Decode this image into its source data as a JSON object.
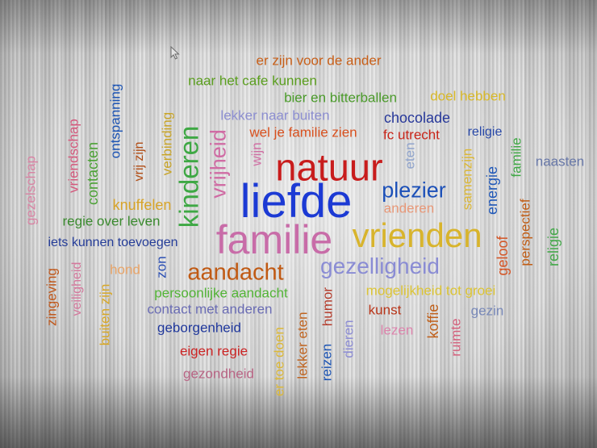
{
  "word_cloud": {
    "words": [
      {
        "text": "er zijn voor de ander",
        "color": "#c85f18"
      },
      {
        "text": "naar het cafe kunnen",
        "color": "#5a9e1e"
      },
      {
        "text": "bier en bitterballen",
        "color": "#4a9a2a"
      },
      {
        "text": "doel hebben",
        "color": "#d8b828"
      },
      {
        "text": "lekker naar buiten",
        "color": "#8c8ed0"
      },
      {
        "text": "chocolade",
        "color": "#27389a"
      },
      {
        "text": "wel je familie zien",
        "color": "#d8501e"
      },
      {
        "text": "fc utrecht",
        "color": "#c82418"
      },
      {
        "text": "religie",
        "color": "#2848a8"
      },
      {
        "text": "naasten",
        "color": "#6878a8"
      },
      {
        "text": "natuur",
        "color": "#c81c1c"
      },
      {
        "text": "plezier",
        "color": "#1c50b8"
      },
      {
        "text": "anderen",
        "color": "#e89878"
      },
      {
        "text": "liefde",
        "color": "#1c3ad4"
      },
      {
        "text": "knuffelen",
        "color": "#d8a428"
      },
      {
        "text": "regie over leven",
        "color": "#3a8a2e"
      },
      {
        "text": "familie",
        "color": "#c86ca8"
      },
      {
        "text": "vrienden",
        "color": "#d8b42c"
      },
      {
        "text": "iets kunnen toevoegen",
        "color": "#243c98"
      },
      {
        "text": "hond",
        "color": "#e8a468"
      },
      {
        "text": "aandacht",
        "color": "#c05a14"
      },
      {
        "text": "gezelligheid",
        "color": "#8a8cd4"
      },
      {
        "text": "persoonlijke aandacht",
        "color": "#52b436"
      },
      {
        "text": "mogelijkheid tot groei",
        "color": "#dcc434"
      },
      {
        "text": "contact met anderen",
        "color": "#6a6cb4"
      },
      {
        "text": "kunst",
        "color": "#b83418"
      },
      {
        "text": "gezin",
        "color": "#7888b8"
      },
      {
        "text": "geborgenheid",
        "color": "#20389c"
      },
      {
        "text": "lezen",
        "color": "#dc84ac"
      },
      {
        "text": "eigen regie",
        "color": "#cc2424"
      },
      {
        "text": "gezondheid",
        "color": "#b86484"
      },
      {
        "text": "gezelschap",
        "color": "#d884a4"
      },
      {
        "text": "vriendschap",
        "color": "#d4587c"
      },
      {
        "text": "contacten",
        "color": "#4ca236"
      },
      {
        "text": "ontspanning",
        "color": "#1c54b4"
      },
      {
        "text": "vrij zijn",
        "color": "#b04c14"
      },
      {
        "text": "verbinding",
        "color": "#c8a428"
      },
      {
        "text": "kinderen",
        "color": "#3ea844"
      },
      {
        "text": "vrijheid",
        "color": "#d06ca4"
      },
      {
        "text": "wijn",
        "color": "#d070a4"
      },
      {
        "text": "eten",
        "color": "#90a4cc"
      },
      {
        "text": "samenzijn",
        "color": "#dcb838"
      },
      {
        "text": "energie",
        "color": "#2058b8"
      },
      {
        "text": "familie",
        "color": "#40a846"
      },
      {
        "text": "perspectief",
        "color": "#c05c14"
      },
      {
        "text": "geloof",
        "color": "#d45424"
      },
      {
        "text": "religie",
        "color": "#44a84a"
      },
      {
        "text": "zingeving",
        "color": "#c0581c"
      },
      {
        "text": "veiligheid",
        "color": "#d4789c"
      },
      {
        "text": "buiten zijn",
        "color": "#d8a828"
      },
      {
        "text": "zon",
        "color": "#2c50b4"
      },
      {
        "text": "er toe doen",
        "color": "#dcb838"
      },
      {
        "text": "lekker eten",
        "color": "#c06420"
      },
      {
        "text": "humor",
        "color": "#b43c2c"
      },
      {
        "text": "reizen",
        "color": "#1c54b4"
      },
      {
        "text": "dieren",
        "color": "#8c8cd4"
      },
      {
        "text": "koffie",
        "color": "#c0601a"
      },
      {
        "text": "ruimte",
        "color": "#d4607c"
      }
    ]
  },
  "cursor": {
    "icon": "mouse-pointer-icon"
  }
}
